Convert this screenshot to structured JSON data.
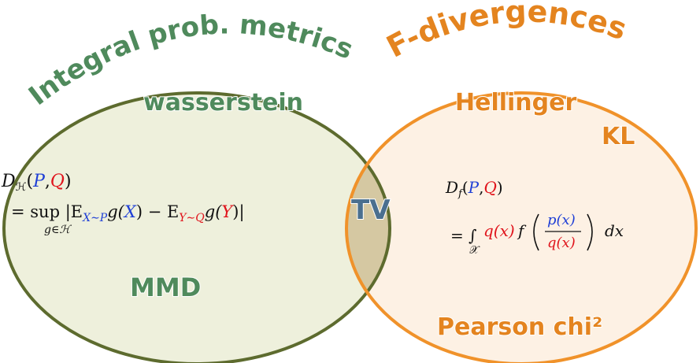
{
  "diagram": {
    "sets": [
      {
        "title": "Integral prob. metrics",
        "members": [
          "wasserstein",
          "MMD"
        ]
      },
      {
        "title": "F-divergences",
        "members": [
          "Hellinger",
          "KL",
          "Pearson chi²"
        ]
      }
    ],
    "intersection": "TV",
    "left_formula": [
      "D",
      "ℋ",
      "(",
      "P",
      ",",
      "Q",
      ")",
      "= sup |E",
      "X∼P",
      "g(",
      "X",
      ") − E",
      "Y∼Q",
      "g(",
      "Y",
      ")|",
      "g∈ℋ"
    ],
    "right_formula": [
      "D",
      "f",
      "(",
      "P",
      ",",
      "Q",
      ")",
      "= ∫",
      "𝒳",
      "q(x)",
      "f",
      "p(x)",
      "q(x)",
      "dx"
    ]
  }
}
